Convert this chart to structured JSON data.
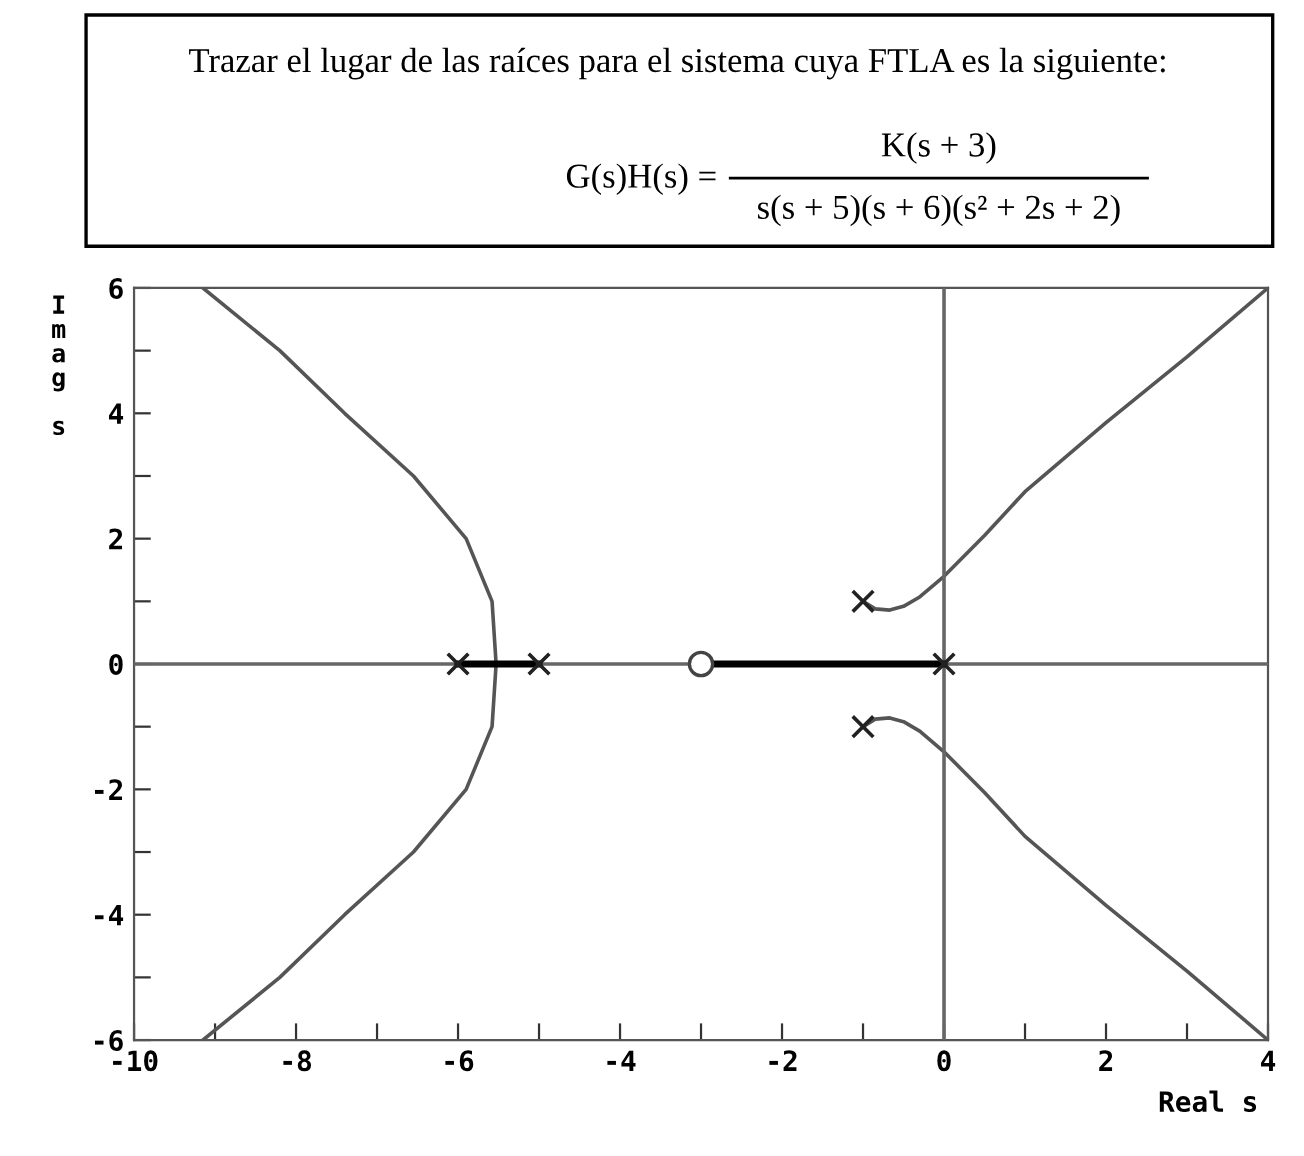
{
  "chart_data": {
    "type": "line",
    "title": "Trazar el lugar de las raíces para el sistema cuya FTLA es la siguiente:",
    "annotations": [
      "G(s)H(s) =",
      "K(s + 3)",
      "s(s + 5)(s + 6)(s² + 2s + 2)"
    ],
    "xlabel": "Real s",
    "ylabel": "Imag s",
    "xlim": [
      -10,
      4
    ],
    "ylim": [
      -6,
      6
    ],
    "xticks": [
      -10,
      {
        "value": -9,
        "label": null
      },
      -8,
      {
        "value": -7,
        "label": null
      },
      -6,
      {
        "value": -5,
        "label": null
      },
      -4,
      {
        "value": -3,
        "label": null
      },
      -2,
      {
        "value": -1,
        "label": null
      },
      0,
      {
        "value": 1,
        "label": null
      },
      2,
      {
        "value": 3,
        "label": null
      },
      4
    ],
    "yticks": [
      -6,
      {
        "value": -5,
        "label": null
      },
      -4,
      {
        "value": -3,
        "label": null
      },
      -2,
      {
        "value": -1,
        "label": null
      },
      0,
      {
        "value": 1,
        "label": null
      },
      2,
      {
        "value": 3,
        "label": null
      },
      4,
      {
        "value": 5,
        "label": null
      },
      6
    ],
    "grid": false,
    "legend": false,
    "series": [
      {
        "color": "#555555",
        "x": [
          -9.15,
          -8.2,
          -7.4,
          -6.55,
          -5.9,
          -5.58,
          -5.53,
          -5.58,
          -5.9,
          -6.55,
          -7.4,
          -8.2,
          -9.15
        ],
        "values": [
          6,
          5,
          4,
          3,
          2,
          1,
          0,
          -1,
          -2,
          -3,
          -4,
          -5,
          -6
        ]
      },
      {
        "color": "#555555",
        "x": [
          -1,
          -0.85,
          -0.67,
          -0.5,
          -0.3,
          0,
          0.5,
          1,
          2,
          3,
          4
        ],
        "values": [
          1,
          0.88,
          0.86,
          0.92,
          1.07,
          1.4,
          2.05,
          2.75,
          3.85,
          4.9,
          6
        ]
      },
      {
        "color": "#555555",
        "x": [
          -1,
          -0.85,
          -0.67,
          -0.5,
          -0.3,
          0,
          0.5,
          1,
          2,
          3,
          4
        ],
        "values": [
          -1,
          -0.88,
          -0.86,
          -0.92,
          -1.07,
          -1.4,
          -2.05,
          -2.75,
          -3.85,
          -4.9,
          -6
        ]
      },
      {
        "color": "#666666",
        "x": [
          0,
          0
        ],
        "values": [
          -6,
          6
        ]
      },
      {
        "color": "#666666",
        "x": [
          -10,
          4
        ],
        "values": [
          0,
          0
        ]
      },
      {
        "color": "#000000",
        "x": [
          -6,
          -5
        ],
        "values": [
          0,
          0
        ]
      },
      {
        "color": "#000000",
        "x": [
          -3,
          0
        ],
        "values": [
          0,
          0
        ]
      },
      {
        "type": "scatter",
        "color": "#222222",
        "marker": "cross",
        "x": [
          -6,
          -5,
          0,
          -1,
          -1
        ],
        "values": [
          0,
          0,
          0,
          1,
          -1
        ]
      },
      {
        "type": "scatter",
        "color": "#444444",
        "marker": "circle",
        "x": [
          -3
        ],
        "values": [
          0
        ]
      }
    ]
  }
}
